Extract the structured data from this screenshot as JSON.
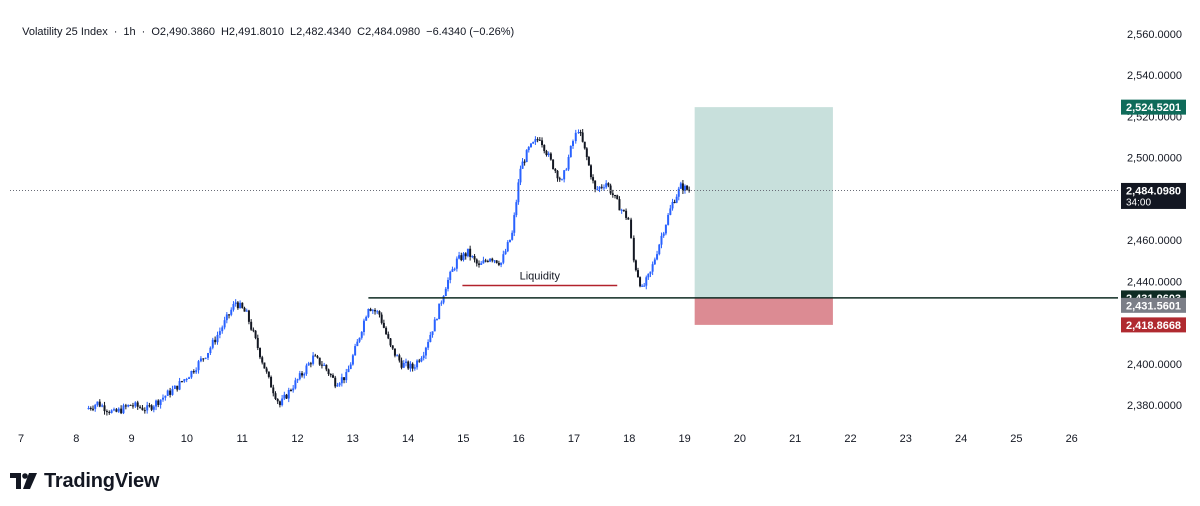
{
  "header": {
    "symbol": "Volatility 25 Index",
    "interval": "1h",
    "open": "O2,490.3860",
    "high": "H2,491.8010",
    "low": "L2,482.4340",
    "close": "C2,484.0980",
    "change": "−6.4340 (−0.26%)"
  },
  "brand": {
    "name": "TradingView",
    "icon": "tradingview-logo-icon"
  },
  "colors": {
    "up": "#2962ff",
    "down": "#131722",
    "target_zone": "#c8e0dc",
    "stop_zone": "#dc8b93",
    "target_label": "#0f6b5a",
    "stop_label": "#b02a30",
    "entry_line": "#0f2b23",
    "liquidity_line": "#b2222c"
  },
  "chart_data": {
    "type": "candlestick",
    "x_tick_labels": [
      "7",
      "8",
      "9",
      "10",
      "11",
      "12",
      "13",
      "14",
      "15",
      "16",
      "17",
      "18",
      "19",
      "20",
      "21",
      "22",
      "23",
      "24",
      "25",
      "26"
    ],
    "y_tick_labels": [
      "2,560.0000",
      "2,540.0000",
      "2,520.0000",
      "2,500.0000",
      "2,480.0000",
      "2,460.0000",
      "2,440.0000",
      "2,420.0000",
      "2,400.0000",
      "2,380.0000"
    ],
    "ylim": [
      2370,
      2568
    ],
    "x_range_days": [
      7,
      27.5
    ],
    "grid": false,
    "price_path": [
      [
        8.2,
        2378
      ],
      [
        8.4,
        2381
      ],
      [
        8.7,
        2376
      ],
      [
        9.0,
        2380
      ],
      [
        9.3,
        2378
      ],
      [
        9.5,
        2382
      ],
      [
        9.8,
        2388
      ],
      [
        10.1,
        2396
      ],
      [
        10.4,
        2406
      ],
      [
        10.7,
        2420
      ],
      [
        10.9,
        2430
      ],
      [
        11.1,
        2424
      ],
      [
        11.3,
        2408
      ],
      [
        11.5,
        2392
      ],
      [
        11.7,
        2380
      ],
      [
        11.9,
        2388
      ],
      [
        12.1,
        2395
      ],
      [
        12.3,
        2403
      ],
      [
        12.5,
        2399
      ],
      [
        12.7,
        2391
      ],
      [
        12.9,
        2394
      ],
      [
        13.1,
        2410
      ],
      [
        13.3,
        2428
      ],
      [
        13.5,
        2424
      ],
      [
        13.7,
        2408
      ],
      [
        13.9,
        2400
      ],
      [
        14.1,
        2398
      ],
      [
        14.3,
        2406
      ],
      [
        14.5,
        2420
      ],
      [
        14.7,
        2438
      ],
      [
        14.9,
        2450
      ],
      [
        15.1,
        2454
      ],
      [
        15.3,
        2447
      ],
      [
        15.5,
        2452
      ],
      [
        15.7,
        2449
      ],
      [
        15.9,
        2463
      ],
      [
        16.05,
        2495
      ],
      [
        16.2,
        2504
      ],
      [
        16.4,
        2510
      ],
      [
        16.6,
        2498
      ],
      [
        16.8,
        2488
      ],
      [
        17.0,
        2508
      ],
      [
        17.1,
        2514
      ],
      [
        17.25,
        2500
      ],
      [
        17.4,
        2484
      ],
      [
        17.6,
        2488
      ],
      [
        17.8,
        2478
      ],
      [
        18.0,
        2470
      ],
      [
        18.1,
        2450
      ],
      [
        18.25,
        2436
      ],
      [
        18.4,
        2444
      ],
      [
        18.6,
        2462
      ],
      [
        18.8,
        2478
      ],
      [
        18.95,
        2486
      ],
      [
        19.1,
        2484.098
      ]
    ],
    "last_price": 2484.098,
    "countdown": "34:00",
    "position_tool": {
      "x_start": 19.2,
      "x_end": 21.7,
      "target": 2524.5201,
      "entry": 2431.9603,
      "stop": 2418.8668,
      "target_label": "2,524.5201",
      "entry_label": "2,431.9603",
      "stop_label": "2,418.8668",
      "secondary_label": "2,431.5601",
      "secondary_value": 2431.5601
    },
    "horizontal_line": {
      "value": 2431.9603,
      "x_start": 13.3
    },
    "liquidity": {
      "label": "Liquidity",
      "value": 2438,
      "x_start": 15.0,
      "x_end": 17.8
    }
  }
}
